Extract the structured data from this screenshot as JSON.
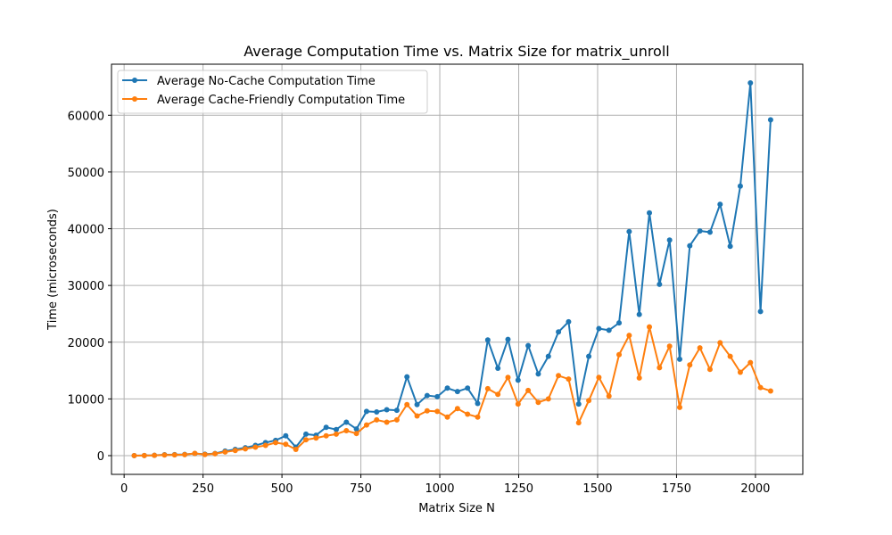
{
  "chart_data": {
    "type": "line",
    "title": "Average Computation Time vs. Matrix Size for matrix_unroll",
    "xlabel": "Matrix Size N",
    "ylabel": "Time (microseconds)",
    "xlim": [
      -40,
      2150
    ],
    "ylim": [
      -3300,
      69000
    ],
    "xticks": [
      0,
      250,
      500,
      750,
      1000,
      1250,
      1500,
      1750,
      2000
    ],
    "yticks": [
      0,
      10000,
      20000,
      30000,
      40000,
      50000,
      60000
    ],
    "grid": true,
    "legend_position": "top-left",
    "x": [
      32,
      64,
      96,
      128,
      160,
      192,
      224,
      256,
      288,
      320,
      352,
      384,
      416,
      448,
      480,
      512,
      544,
      576,
      608,
      640,
      672,
      704,
      736,
      768,
      800,
      832,
      864,
      896,
      928,
      960,
      992,
      1024,
      1056,
      1088,
      1120,
      1152,
      1184,
      1216,
      1248,
      1280,
      1312,
      1344,
      1376,
      1408,
      1440,
      1472,
      1504,
      1536,
      1568,
      1600,
      1632,
      1664,
      1696,
      1728,
      1760,
      1792,
      1824,
      1856,
      1888,
      1920,
      1952,
      1984,
      2016,
      2048
    ],
    "series": [
      {
        "name": "Average No-Cache Computation Time",
        "color": "#1f77b4",
        "values": [
          10,
          30,
          60,
          150,
          180,
          220,
          380,
          250,
          380,
          800,
          1100,
          1400,
          1800,
          2300,
          2700,
          3500,
          1500,
          3800,
          3600,
          5000,
          4600,
          5900,
          4700,
          7800,
          7700,
          8100,
          8000,
          13900,
          9000,
          10600,
          10400,
          11900,
          11300,
          11900,
          9200,
          20400,
          15400,
          20500,
          13300,
          19400,
          14400,
          17500,
          21800,
          23600,
          9100,
          17500,
          22400,
          22100,
          23400,
          39500,
          24900,
          42800,
          30200,
          38000,
          17000,
          37000,
          39600,
          39400,
          44300,
          36900,
          47500,
          65700,
          25400,
          59200
        ]
      },
      {
        "name": "Average Cache-Friendly Computation Time",
        "color": "#ff7f0e",
        "values": [
          10,
          20,
          50,
          110,
          140,
          170,
          400,
          200,
          340,
          650,
          900,
          1200,
          1500,
          1800,
          2300,
          2000,
          1100,
          2800,
          3100,
          3500,
          3800,
          4400,
          3900,
          5400,
          6300,
          5900,
          6300,
          9000,
          7000,
          7900,
          7800,
          6800,
          8300,
          7300,
          6800,
          11800,
          10800,
          13800,
          9100,
          11500,
          9400,
          10000,
          14100,
          13500,
          5800,
          9700,
          13800,
          10500,
          17800,
          21200,
          13700,
          22700,
          15500,
          19300,
          8500,
          16000,
          19000,
          15200,
          19900,
          17500,
          14700,
          16400,
          12000,
          11400
        ]
      }
    ]
  }
}
